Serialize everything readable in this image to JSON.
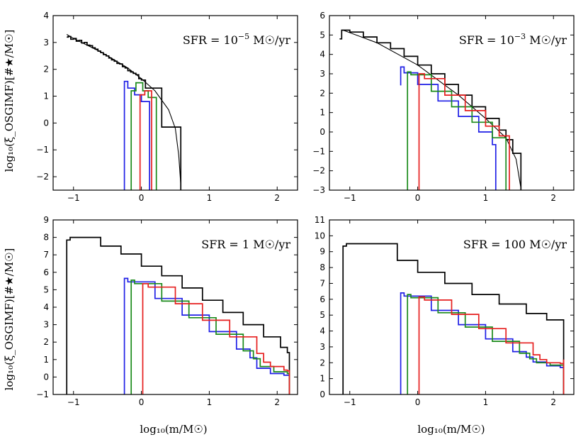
{
  "chart_data": [
    {
      "type": "line",
      "annotation": "SFR = 10",
      "annotation_exp": "−5",
      "annotation_unit": " M☉/yr",
      "xlim": [
        -1.3,
        2.3
      ],
      "ylim": [
        -2.5,
        4
      ],
      "xticks": [
        -1,
        0,
        1,
        2
      ],
      "xtick_labels": [
        "−1",
        "0",
        "1",
        "2"
      ],
      "yticks": [
        -2,
        -1,
        0,
        1,
        2,
        3,
        4
      ],
      "ytick_labels": [
        "−2",
        "−1",
        "0",
        "1",
        "2",
        "3",
        "4"
      ],
      "series": [
        {
          "name": "black-step",
          "color": "#000000",
          "step": true,
          "x": [
            -1.1,
            -1.08,
            -1.04,
            -1.0,
            -0.96,
            -0.92,
            -0.88,
            -0.84,
            -0.8,
            -0.76,
            -0.72,
            -0.68,
            -0.64,
            -0.6,
            -0.56,
            -0.52,
            -0.48,
            -0.44,
            -0.4,
            -0.36,
            -0.32,
            -0.28,
            -0.24,
            -0.2,
            -0.16,
            -0.12,
            -0.08,
            -0.04,
            0.0,
            0.06,
            0.3,
            0.52,
            0.58
          ],
          "y": [
            3.2,
            3.22,
            3.12,
            3.15,
            3.05,
            3.08,
            2.98,
            3.0,
            2.9,
            2.88,
            2.8,
            2.75,
            2.68,
            2.62,
            2.55,
            2.5,
            2.42,
            2.35,
            2.3,
            2.22,
            2.2,
            2.1,
            2.05,
            1.95,
            1.9,
            1.85,
            1.8,
            1.65,
            1.6,
            1.3,
            -0.15,
            -0.15,
            -2.5
          ]
        },
        {
          "name": "black-smooth",
          "color": "#000000",
          "step": false,
          "x": [
            -1.1,
            -1.0,
            -0.8,
            -0.6,
            -0.4,
            -0.2,
            0.0,
            0.2,
            0.4,
            0.5,
            0.55,
            0.58
          ],
          "y": [
            3.3,
            3.15,
            2.9,
            2.65,
            2.35,
            2.05,
            1.65,
            1.2,
            0.5,
            -0.2,
            -1.2,
            -2.3
          ]
        },
        {
          "name": "blue",
          "color": "#1f1fe6",
          "step": true,
          "x": [
            -0.25,
            -0.25,
            -0.2,
            -0.1,
            0.0,
            0.12,
            0.12
          ],
          "y": [
            -2.5,
            1.55,
            1.3,
            1.05,
            0.8,
            0.6,
            -2.5
          ]
        },
        {
          "name": "green",
          "color": "#1a8a1a",
          "step": true,
          "x": [
            -0.15,
            -0.15,
            -0.08,
            0.02,
            0.1,
            0.22,
            0.22
          ],
          "y": [
            -2.5,
            1.2,
            1.5,
            1.2,
            0.95,
            0.7,
            -2.5
          ]
        },
        {
          "name": "red",
          "color": "#e61f1f",
          "step": true,
          "x": [
            -0.02,
            -0.02,
            0.05,
            0.15,
            0.15
          ],
          "y": [
            -2.5,
            1.05,
            1.2,
            0.95,
            -2.5
          ]
        }
      ]
    },
    {
      "type": "line",
      "annotation": "SFR = 10",
      "annotation_exp": "−3",
      "annotation_unit": " M☉/yr",
      "xlim": [
        -1.3,
        2.3
      ],
      "ylim": [
        -3,
        6
      ],
      "xticks": [
        -1,
        0,
        1,
        2
      ],
      "xtick_labels": [
        "−1",
        "0",
        "1",
        "2"
      ],
      "yticks": [
        -3,
        -2,
        -1,
        0,
        1,
        2,
        3,
        4,
        5,
        6
      ],
      "ytick_labels": [
        "−3",
        "−2",
        "−1",
        "0",
        "1",
        "2",
        "3",
        "4",
        "5",
        "6"
      ],
      "series": [
        {
          "name": "black-step",
          "color": "#000000",
          "step": true,
          "x": [
            -1.15,
            -1.12,
            -1.0,
            -0.8,
            -0.6,
            -0.4,
            -0.2,
            0.0,
            0.2,
            0.4,
            0.6,
            0.8,
            1.0,
            1.2,
            1.3,
            1.4,
            1.52,
            1.52
          ],
          "y": [
            4.8,
            5.25,
            5.15,
            4.9,
            4.6,
            4.3,
            3.9,
            3.45,
            3.0,
            2.45,
            1.9,
            1.3,
            0.7,
            0.1,
            -0.4,
            -1.1,
            -1.1,
            -3
          ]
        },
        {
          "name": "black-smooth",
          "color": "#000000",
          "step": false,
          "x": [
            -1.1,
            -0.6,
            0.0,
            0.6,
            1.0,
            1.3,
            1.45,
            1.52
          ],
          "y": [
            5.25,
            4.6,
            3.45,
            1.9,
            0.7,
            -0.3,
            -1.4,
            -2.9
          ]
        },
        {
          "name": "blue",
          "color": "#1f1fe6",
          "step": true,
          "x": [
            -0.25,
            -0.25,
            -0.2,
            0.0,
            0.3,
            0.6,
            0.9,
            1.1,
            1.15,
            1.15
          ],
          "y": [
            2.4,
            3.35,
            3.05,
            2.45,
            1.6,
            0.8,
            0.0,
            -0.65,
            -0.65,
            -3
          ]
        },
        {
          "name": "green",
          "color": "#1a8a1a",
          "step": true,
          "x": [
            -0.15,
            -0.15,
            -0.1,
            0.2,
            0.5,
            0.8,
            1.1,
            1.3,
            1.3
          ],
          "y": [
            -3,
            3.1,
            2.95,
            2.1,
            1.3,
            0.5,
            -0.3,
            -0.85,
            -3
          ]
        },
        {
          "name": "red",
          "color": "#e61f1f",
          "step": true,
          "x": [
            0.02,
            0.02,
            0.1,
            0.4,
            0.7,
            1.0,
            1.2,
            1.35,
            1.35
          ],
          "y": [
            -3,
            3.0,
            2.75,
            1.9,
            1.1,
            0.3,
            -0.2,
            -0.4,
            -3
          ]
        }
      ]
    },
    {
      "type": "line",
      "annotation": "SFR = 1",
      "annotation_exp": "",
      "annotation_unit": " M☉/yr",
      "xlim": [
        -1.3,
        2.3
      ],
      "ylim": [
        -1,
        9
      ],
      "xticks": [
        -1,
        0,
        1,
        2
      ],
      "xtick_labels": [
        "−1",
        "0",
        "1",
        "2"
      ],
      "yticks": [
        -1,
        0,
        1,
        2,
        3,
        4,
        5,
        6,
        7,
        8,
        9
      ],
      "ytick_labels": [
        "−1",
        "0",
        "1",
        "2",
        "3",
        "4",
        "5",
        "6",
        "7",
        "8",
        "9"
      ],
      "xlabel": "log₁₀(m/M☉)",
      "series": [
        {
          "name": "black",
          "color": "#000000",
          "step": true,
          "x": [
            -1.1,
            -1.1,
            -1.05,
            -0.6,
            -0.3,
            0.0,
            0.3,
            0.6,
            0.9,
            1.2,
            1.5,
            1.8,
            2.05,
            2.15,
            2.18,
            2.18
          ],
          "y": [
            -1,
            7.85,
            8.0,
            7.5,
            7.05,
            6.35,
            5.8,
            5.1,
            4.4,
            3.7,
            3.0,
            2.3,
            1.7,
            1.4,
            1.3,
            -1
          ]
        },
        {
          "name": "blue",
          "color": "#1f1fe6",
          "step": true,
          "x": [
            -0.25,
            -0.25,
            -0.2,
            0.2,
            0.6,
            1.0,
            1.4,
            1.6,
            1.7,
            1.9,
            2.1,
            2.18,
            2.18
          ],
          "y": [
            -1,
            5.65,
            5.45,
            4.5,
            3.55,
            2.6,
            1.6,
            1.1,
            0.5,
            0.2,
            0.1,
            0.1,
            -1
          ]
        },
        {
          "name": "green",
          "color": "#1a8a1a",
          "step": true,
          "x": [
            -0.15,
            -0.15,
            -0.1,
            0.3,
            0.7,
            1.1,
            1.5,
            1.65,
            1.75,
            1.95,
            2.15,
            2.18,
            2.18
          ],
          "y": [
            -1,
            5.55,
            5.35,
            4.35,
            3.4,
            2.45,
            1.5,
            1.05,
            0.6,
            0.3,
            0.2,
            0.3,
            -1
          ]
        },
        {
          "name": "red",
          "color": "#e61f1f",
          "step": true,
          "x": [
            0.02,
            0.02,
            0.1,
            0.5,
            0.9,
            1.3,
            1.7,
            1.8,
            1.9,
            2.1,
            2.15,
            2.18,
            2.18
          ],
          "y": [
            -1,
            5.35,
            5.15,
            4.2,
            3.25,
            2.3,
            1.35,
            0.85,
            0.6,
            0.4,
            0.35,
            0.4,
            -1
          ]
        }
      ]
    },
    {
      "type": "line",
      "annotation": "SFR = 100",
      "annotation_exp": "",
      "annotation_unit": " M☉/yr",
      "xlim": [
        -1.3,
        2.3
      ],
      "ylim": [
        0,
        11
      ],
      "xticks": [
        -1,
        0,
        1,
        2
      ],
      "xtick_labels": [
        "−1",
        "0",
        "1",
        "2"
      ],
      "yticks": [
        0,
        1,
        2,
        3,
        4,
        5,
        6,
        7,
        8,
        9,
        10,
        11
      ],
      "ytick_labels": [
        "0",
        "1",
        "2",
        "3",
        "4",
        "5",
        "6",
        "7",
        "8",
        "9",
        "10",
        "11"
      ],
      "xlabel": "log₁₀(m/M☉)",
      "series": [
        {
          "name": "black",
          "color": "#000000",
          "step": true,
          "x": [
            -1.1,
            -1.1,
            -1.05,
            -0.3,
            0.0,
            0.4,
            0.8,
            1.2,
            1.6,
            1.9,
            2.15,
            2.15
          ],
          "y": [
            0,
            9.35,
            9.5,
            8.45,
            7.7,
            7.0,
            6.3,
            5.7,
            5.1,
            4.7,
            4.35,
            0
          ]
        },
        {
          "name": "blue",
          "color": "#1f1fe6",
          "step": true,
          "x": [
            -0.25,
            -0.25,
            -0.2,
            0.2,
            0.6,
            1.0,
            1.4,
            1.6,
            1.7,
            1.9,
            2.1,
            2.15,
            2.15
          ],
          "y": [
            0,
            6.4,
            6.2,
            5.3,
            4.4,
            3.5,
            2.7,
            2.35,
            2.05,
            1.8,
            1.7,
            1.8,
            0
          ]
        },
        {
          "name": "green",
          "color": "#1a8a1a",
          "step": true,
          "x": [
            -0.15,
            -0.15,
            -0.1,
            0.3,
            0.7,
            1.1,
            1.5,
            1.65,
            1.75,
            1.95,
            2.15,
            2.15
          ],
          "y": [
            0,
            6.3,
            6.1,
            5.15,
            4.25,
            3.35,
            2.6,
            2.25,
            2.0,
            1.85,
            1.85,
            0
          ]
        },
        {
          "name": "red",
          "color": "#e61f1f",
          "step": true,
          "x": [
            0.02,
            0.02,
            0.1,
            0.5,
            0.9,
            1.3,
            1.7,
            1.8,
            1.9,
            2.1,
            2.15,
            2.15
          ],
          "y": [
            0,
            6.15,
            5.95,
            5.05,
            4.15,
            3.25,
            2.5,
            2.2,
            2.0,
            1.95,
            2.2,
            0
          ]
        }
      ]
    }
  ],
  "ylabel": "log₁₀(ξ_OSGIMF)[#★/M☉]"
}
